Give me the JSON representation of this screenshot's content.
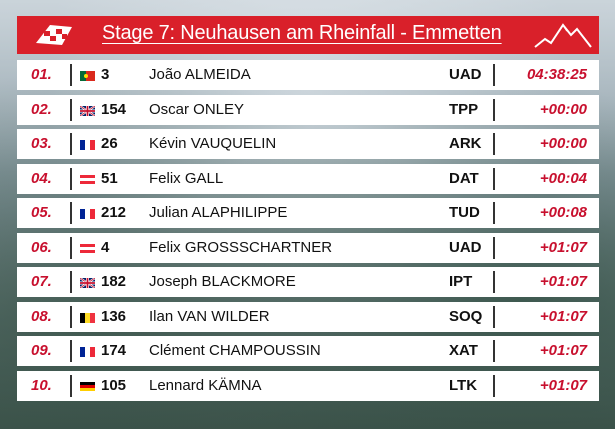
{
  "header": {
    "title": "Stage 7: Neuhausen am Rheinfall - Emmetten",
    "logo_icon": "red-flag-checkered-logo",
    "mountain_icon": "mountain-profile-icon",
    "accent_color": "#d9202a"
  },
  "rows": [
    {
      "pos": "01.",
      "flag": "portugal-flag",
      "num": "3",
      "name": "João ALMEIDA",
      "team": "UAD",
      "time": "04:38:25"
    },
    {
      "pos": "02.",
      "flag": "uk-flag",
      "num": "154",
      "name": "Oscar ONLEY",
      "team": "TPP",
      "time": "+00:00"
    },
    {
      "pos": "03.",
      "flag": "france-flag",
      "num": "26",
      "name": "Kévin VAUQUELIN",
      "team": "ARK",
      "time": "+00:00"
    },
    {
      "pos": "04.",
      "flag": "austria-flag",
      "num": "51",
      "name": "Felix GALL",
      "team": "DAT",
      "time": "+00:04"
    },
    {
      "pos": "05.",
      "flag": "france-flag",
      "num": "212",
      "name": "Julian ALAPHILIPPE",
      "team": "TUD",
      "time": "+00:08"
    },
    {
      "pos": "06.",
      "flag": "austria-flag",
      "num": "4",
      "name": "Felix GROSSSCHARTNER",
      "team": "UAD",
      "time": "+01:07"
    },
    {
      "pos": "07.",
      "flag": "uk-flag",
      "num": "182",
      "name": "Joseph BLACKMORE",
      "team": "IPT",
      "time": "+01:07"
    },
    {
      "pos": "08.",
      "flag": "belgium-flag",
      "num": "136",
      "name": "Ilan VAN WILDER",
      "team": "SOQ",
      "time": "+01:07"
    },
    {
      "pos": "09.",
      "flag": "france-flag",
      "num": "174",
      "name": "Clément CHAMPOUSSIN",
      "team": "XAT",
      "time": "+01:07"
    },
    {
      "pos": "10.",
      "flag": "germany-flag",
      "num": "105",
      "name": "Lennard KÄMNA",
      "team": "LTK",
      "time": "+01:07"
    }
  ]
}
